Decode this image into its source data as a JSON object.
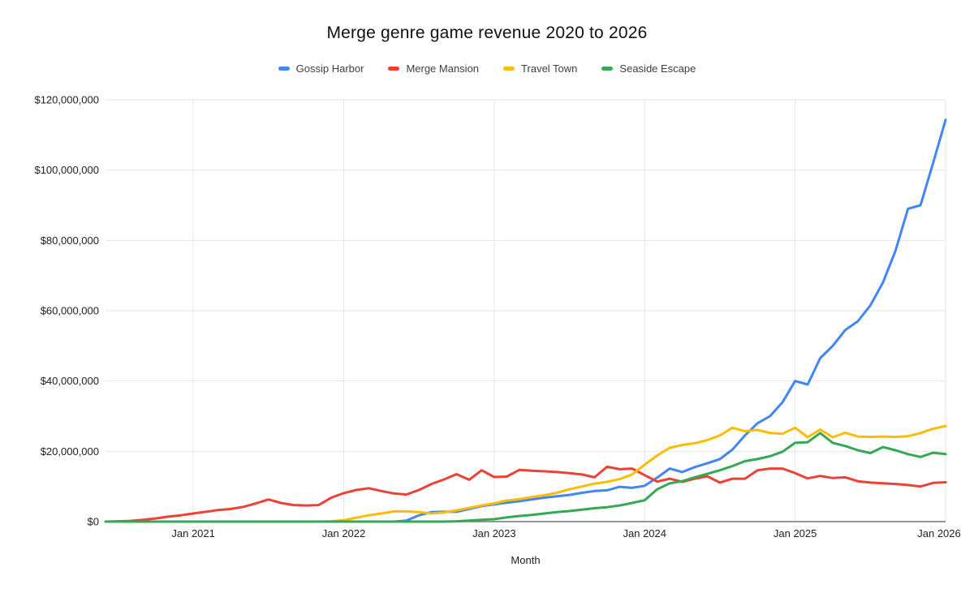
{
  "title": "Merge genre game revenue 2020 to 2026",
  "legend": [
    {
      "label": "Gossip Harbor",
      "color": "#4285f4"
    },
    {
      "label": "Merge Mansion",
      "color": "#ea4335"
    },
    {
      "label": "Travel Town",
      "color": "#fbbc04"
    },
    {
      "label": "Seaside Escape",
      "color": "#34a853"
    }
  ],
  "x_axis": {
    "title": "Month",
    "ticks": [
      "Jan 2021",
      "Jan 2022",
      "Jan 2023",
      "Jan 2024",
      "Jan 2025",
      "Jan 2026"
    ],
    "tick_indices": [
      7,
      19,
      31,
      43,
      55,
      67
    ]
  },
  "y_axis": {
    "tick_labels": [
      "$0",
      "$20,000,000",
      "$40,000,000",
      "$60,000,000",
      "$80,000,000",
      "$100,000,000",
      "$120,000,000"
    ],
    "tick_values_millions": [
      0,
      20,
      40,
      60,
      80,
      100,
      120
    ]
  },
  "style_colors": {
    "gridline": "#e6e6e6",
    "baseline": "#757575",
    "tick_text": "#202124",
    "title_text": "#111111"
  },
  "chart_data": {
    "type": "line",
    "title": "Merge genre game revenue 2020 to 2026",
    "xlabel": "Month",
    "ylabel": "",
    "unit": "USD millions",
    "ylim_millions": [
      0,
      120
    ],
    "grid": true,
    "legend_position": "top",
    "x": [
      "Jun 2020",
      "Jul 2020",
      "Aug 2020",
      "Sep 2020",
      "Oct 2020",
      "Nov 2020",
      "Dec 2020",
      "Jan 2021",
      "Feb 2021",
      "Mar 2021",
      "Apr 2021",
      "May 2021",
      "Jun 2021",
      "Jul 2021",
      "Aug 2021",
      "Sep 2021",
      "Oct 2021",
      "Nov 2021",
      "Dec 2021",
      "Jan 2022",
      "Feb 2022",
      "Mar 2022",
      "Apr 2022",
      "May 2022",
      "Jun 2022",
      "Jul 2022",
      "Aug 2022",
      "Sep 2022",
      "Oct 2022",
      "Nov 2022",
      "Dec 2022",
      "Jan 2023",
      "Feb 2023",
      "Mar 2023",
      "Apr 2023",
      "May 2023",
      "Jun 2023",
      "Jul 2023",
      "Aug 2023",
      "Sep 2023",
      "Oct 2023",
      "Nov 2023",
      "Dec 2023",
      "Jan 2024",
      "Feb 2024",
      "Mar 2024",
      "Apr 2024",
      "May 2024",
      "Jun 2024",
      "Jul 2024",
      "Aug 2024",
      "Sep 2024",
      "Oct 2024",
      "Nov 2024",
      "Dec 2024",
      "Jan 2025",
      "Feb 2025",
      "Mar 2025",
      "Apr 2025",
      "May 2025",
      "Jun 2025",
      "Jul 2025",
      "Aug 2025",
      "Sep 2025",
      "Oct 2025",
      "Nov 2025",
      "Dec 2025",
      "Jan 2026"
    ],
    "series": [
      {
        "name": "Gossip Harbor",
        "color": "#4285f4",
        "values": [
          0,
          0,
          0,
          0,
          0,
          0,
          0,
          0,
          0,
          0,
          0,
          0,
          0,
          0,
          0,
          0,
          0,
          0,
          0,
          0,
          0,
          0,
          0,
          0,
          0.3,
          1.8,
          2.7,
          2.8,
          2.8,
          3.6,
          4.4,
          4.9,
          5.4,
          5.8,
          6.3,
          6.8,
          7.2,
          7.6,
          8.2,
          8.7,
          8.9,
          9.9,
          9.6,
          10.2,
          12.5,
          15.1,
          14.1,
          15.5,
          16.6,
          17.8,
          20.5,
          24.5,
          28,
          30,
          34,
          40,
          39,
          46.5,
          50,
          54.5,
          57,
          61.5,
          68,
          77,
          89,
          90,
          102,
          114.3
        ]
      },
      {
        "name": "Merge Mansion",
        "color": "#ea4335",
        "values": [
          0,
          0.1,
          0.2,
          0.5,
          0.9,
          1.4,
          1.8,
          2.3,
          2.8,
          3.3,
          3.6,
          4.2,
          5.2,
          6.3,
          5.3,
          4.7,
          4.6,
          4.7,
          6.8,
          8.1,
          9,
          9.5,
          8.7,
          8,
          7.7,
          9,
          10.7,
          12,
          13.5,
          11.9,
          14.6,
          12.7,
          12.8,
          14.7,
          14.5,
          14.3,
          14.1,
          13.8,
          13.4,
          12.6,
          15.6,
          14.9,
          15.1,
          13.2,
          11.4,
          12.2,
          11.3,
          12.2,
          12.9,
          11.1,
          12.2,
          12.2,
          14.6,
          15.1,
          15.1,
          13.8,
          12.3,
          13,
          12.4,
          12.6,
          11.5,
          11.1,
          10.9,
          10.7,
          10.4,
          10,
          11,
          11.2
        ]
      },
      {
        "name": "Travel Town",
        "color": "#fbbc04",
        "values": [
          0,
          0,
          0,
          0,
          0,
          0,
          0,
          0,
          0,
          0,
          0,
          0,
          0,
          0,
          0,
          0,
          0,
          0,
          0.1,
          0.4,
          1.1,
          1.8,
          2.3,
          2.9,
          2.9,
          2.7,
          2.3,
          2.6,
          3.2,
          3.9,
          4.6,
          5.2,
          6,
          6.4,
          7,
          7.5,
          8.2,
          9.2,
          10,
          10.8,
          11.3,
          12.1,
          13.4,
          16.2,
          18.8,
          21,
          21.8,
          22.3,
          23.2,
          24.5,
          26.7,
          25.7,
          26.1,
          25.2,
          25,
          26.7,
          24,
          26.2,
          24,
          25.3,
          24.2,
          24.1,
          24.2,
          24.1,
          24.3,
          25.2,
          26.4,
          27.2
        ]
      },
      {
        "name": "Seaside Escape",
        "color": "#34a853",
        "values": [
          0,
          0,
          0,
          0,
          0,
          0,
          0,
          0,
          0,
          0,
          0,
          0,
          0,
          0,
          0,
          0,
          0,
          0,
          0,
          0,
          0,
          0,
          0,
          0,
          0,
          0,
          0,
          0,
          0.1,
          0.3,
          0.5,
          0.7,
          1.2,
          1.6,
          1.9,
          2.3,
          2.7,
          3,
          3.4,
          3.8,
          4.1,
          4.6,
          5.3,
          6.1,
          9.2,
          10.9,
          11.5,
          12.6,
          13.6,
          14.6,
          15.8,
          17.2,
          17.8,
          18.6,
          19.9,
          22.4,
          22.6,
          25.2,
          22.4,
          21.5,
          20.3,
          19.5,
          21.2,
          20.3,
          19.2,
          18.4,
          19.6,
          19.2
        ]
      }
    ]
  }
}
